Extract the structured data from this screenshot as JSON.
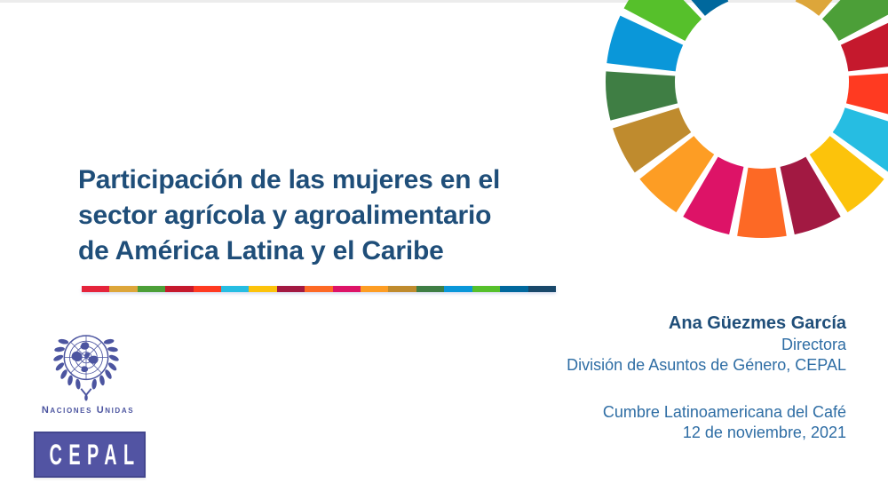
{
  "slide": {
    "title_lines": [
      "Participación de las mujeres en el",
      "sector agrícola y agroalimentario",
      "de América Latina y el Caribe"
    ],
    "author": {
      "name": "Ana Güezmes García",
      "role": "Directora",
      "division": "División de Asuntos de Género, CEPAL",
      "event": "Cumbre Latinoamericana del Café",
      "date": "12 de noviembre, 2021"
    },
    "logos": {
      "un_caption": "Naciones Unidas",
      "cepal_label": "CEPAL"
    },
    "icons": {
      "sdg_wheel": "sdg-17-color-wheel",
      "un_emblem": "un-globe-olive-wreath"
    },
    "colors": {
      "background": "#FFFFFF",
      "top_edge": "#ECECEC",
      "title_text": "#1F4E79",
      "body_text": "#2E6DA4",
      "un_blue": "#4C55A0",
      "cepal_bg": "#5254A3",
      "cepal_border": "#43468E",
      "sdg_palette": [
        "#E5243B",
        "#DDA63A",
        "#4C9F38",
        "#C5192D",
        "#FF3A21",
        "#26BDE2",
        "#FCC30B",
        "#A21942",
        "#FD6925",
        "#DD1367",
        "#FD9D24",
        "#BF8B2E",
        "#3F7E44",
        "#0A97D9",
        "#56C02B",
        "#00689D",
        "#19486A"
      ]
    }
  }
}
